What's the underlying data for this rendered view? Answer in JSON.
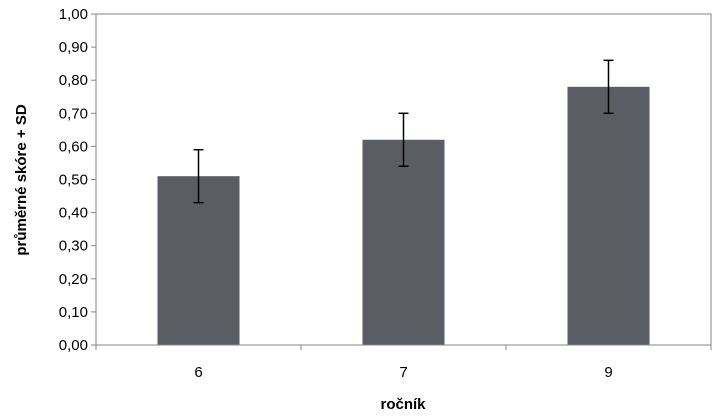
{
  "chart_data": {
    "type": "bar",
    "categories": [
      "6",
      "7",
      "9"
    ],
    "values": [
      0.51,
      0.62,
      0.78
    ],
    "errors": [
      0.08,
      0.08,
      0.08
    ],
    "xlabel": "ročník",
    "ylabel": "průměrné skóre + SD",
    "ylim": [
      0,
      1
    ],
    "yticks": [
      "0,00",
      "0,10",
      "0,20",
      "0,30",
      "0,40",
      "0,50",
      "0,60",
      "0,70",
      "0,80",
      "0,90",
      "1,00"
    ],
    "grid": false,
    "bar_color": "#5a5d64",
    "error_color": "#000000"
  }
}
